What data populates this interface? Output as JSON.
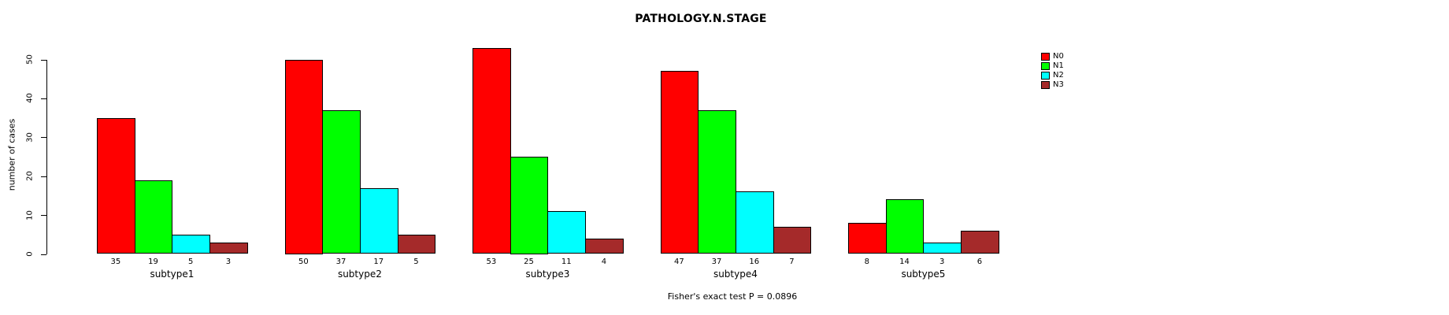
{
  "title": "PATHOLOGY.N.STAGE",
  "footer": "Fisher's exact test P = 0.0896",
  "y_axis": {
    "label": "number of cases",
    "ticks": [
      0,
      10,
      20,
      30,
      40,
      50
    ]
  },
  "legend": {
    "position": "right",
    "items": [
      {
        "label": "N0",
        "color": "#FF0000"
      },
      {
        "label": "N1",
        "color": "#00FF00"
      },
      {
        "label": "N2",
        "color": "#00FFFF"
      },
      {
        "label": "N3",
        "color": "#A52A2A"
      }
    ]
  },
  "chart_data": {
    "type": "bar",
    "grouped": true,
    "categories": [
      "subtype1",
      "subtype2",
      "subtype3",
      "subtype4",
      "subtype5"
    ],
    "series": [
      {
        "name": "N0",
        "color": "#FF0000",
        "values": [
          35,
          50,
          53,
          47,
          8
        ]
      },
      {
        "name": "N1",
        "color": "#00FF00",
        "values": [
          19,
          37,
          25,
          37,
          14
        ]
      },
      {
        "name": "N2",
        "color": "#00FFFF",
        "values": [
          5,
          17,
          11,
          16,
          3
        ]
      },
      {
        "name": "N3",
        "color": "#A52A2A",
        "values": [
          3,
          5,
          4,
          7,
          6
        ]
      }
    ],
    "bar_value_labels": [
      [
        35,
        19,
        5,
        3
      ],
      [
        50,
        37,
        17,
        5
      ],
      [
        53,
        25,
        11,
        4
      ],
      [
        47,
        37,
        16,
        7
      ],
      [
        8,
        14,
        3,
        6
      ]
    ],
    "title": "PATHOLOGY.N.STAGE",
    "xlabel": "",
    "ylabel": "number of cases",
    "ylim": [
      0,
      55
    ],
    "grid": false,
    "legend_position": "right",
    "annotation": "Fisher's exact test P = 0.0896"
  }
}
